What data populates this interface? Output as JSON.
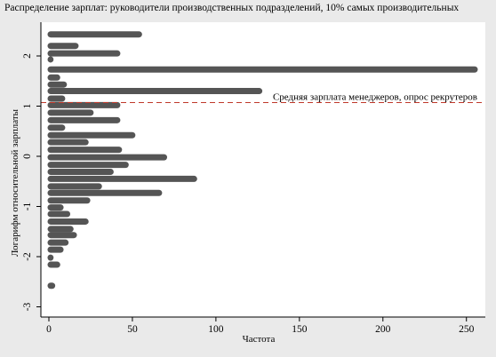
{
  "chart_data": {
    "type": "bar",
    "orientation": "horizontal",
    "title": "Распределение зарплат: руководители производственных подразделений, 10% самых производительных",
    "xlabel": "Частота",
    "ylabel": "Логарифм относительной зарплаты",
    "xlim": [
      0,
      260
    ],
    "ylim": [
      -3.2,
      2.6
    ],
    "x_ticks": [
      0,
      50,
      100,
      150,
      200,
      250
    ],
    "y_ticks": [
      -3,
      -2,
      -1,
      0,
      1,
      2
    ],
    "grid": false,
    "bar_color": "#555555",
    "reference_line": {
      "value": 1.07,
      "label": "Средняя зарплата менеджеров, опрос рекрутеров",
      "color": "#c0392b",
      "style": "dashed"
    },
    "bins": [
      {
        "y": 2.43,
        "count": 55
      },
      {
        "y": 2.2,
        "count": 17
      },
      {
        "y": 2.05,
        "count": 42
      },
      {
        "y": 1.93,
        "count": 2
      },
      {
        "y": 1.73,
        "count": 256
      },
      {
        "y": 1.57,
        "count": 6
      },
      {
        "y": 1.43,
        "count": 10
      },
      {
        "y": 1.3,
        "count": 127
      },
      {
        "y": 1.15,
        "count": 9
      },
      {
        "y": 1.02,
        "count": 42
      },
      {
        "y": 0.87,
        "count": 26
      },
      {
        "y": 0.72,
        "count": 42
      },
      {
        "y": 0.57,
        "count": 9
      },
      {
        "y": 0.42,
        "count": 51
      },
      {
        "y": 0.28,
        "count": 23
      },
      {
        "y": 0.13,
        "count": 43
      },
      {
        "y": -0.02,
        "count": 70
      },
      {
        "y": -0.17,
        "count": 47
      },
      {
        "y": -0.31,
        "count": 38
      },
      {
        "y": -0.45,
        "count": 88
      },
      {
        "y": -0.6,
        "count": 31
      },
      {
        "y": -0.73,
        "count": 67
      },
      {
        "y": -0.88,
        "count": 24
      },
      {
        "y": -1.02,
        "count": 8
      },
      {
        "y": -1.15,
        "count": 12
      },
      {
        "y": -1.3,
        "count": 23
      },
      {
        "y": -1.45,
        "count": 14
      },
      {
        "y": -1.57,
        "count": 16
      },
      {
        "y": -1.72,
        "count": 11
      },
      {
        "y": -1.86,
        "count": 8
      },
      {
        "y": -2.02,
        "count": 2
      },
      {
        "y": -2.16,
        "count": 6
      },
      {
        "y": -2.58,
        "count": 3
      }
    ]
  }
}
